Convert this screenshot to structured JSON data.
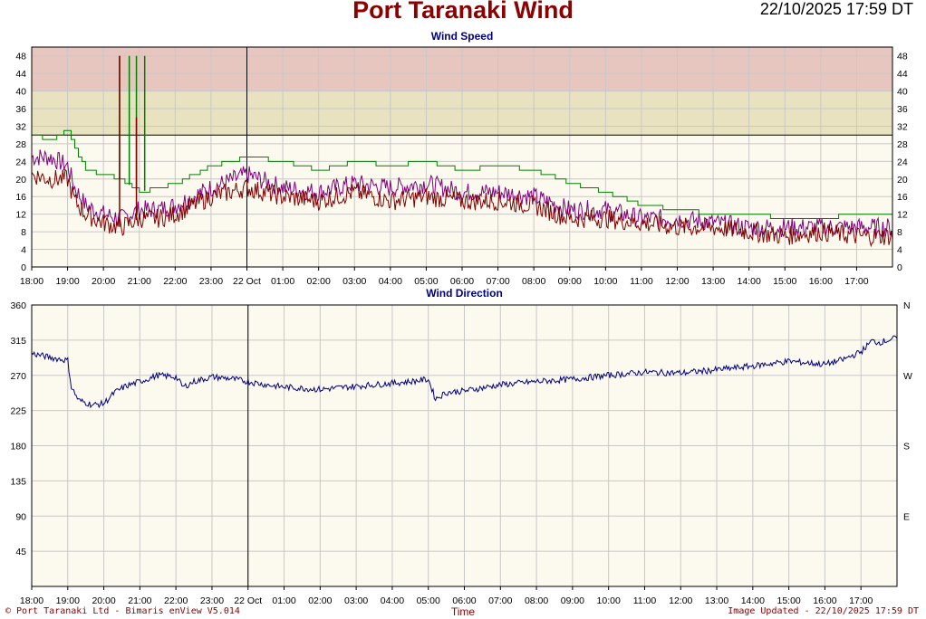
{
  "header": {
    "title": "Port Taranaki Wind",
    "timestamp": "22/10/2025 17:59 DT"
  },
  "footer": {
    "left": "© Port Taranaki Ltd - Bimaris enView V5.014",
    "right": "Image Updated - 22/10/2025 17:59 DT",
    "xlabel": "Time"
  },
  "colors": {
    "gust": "#800080",
    "mean": "#800000",
    "max": "#008000",
    "direction": "#000080",
    "band_high": "#e8c6c0",
    "band_mid": "#e8e2c0",
    "background": "#fcf9ee"
  },
  "x_ticks": [
    "18:00",
    "19:00",
    "20:00",
    "21:00",
    "22:00",
    "23:00",
    "22 Oct",
    "01:00",
    "02:00",
    "03:00",
    "04:00",
    "05:00",
    "06:00",
    "07:00",
    "08:00",
    "09:00",
    "10:00",
    "11:00",
    "12:00",
    "13:00",
    "14:00",
    "15:00",
    "16:00",
    "17:00"
  ],
  "chart_data": [
    {
      "type": "line",
      "title": "Wind Speed",
      "x_range": [
        "21/10/2025 18:00",
        "22/10/2025 18:00"
      ],
      "ylim": [
        0,
        50
      ],
      "yticks": [
        0,
        4,
        8,
        12,
        16,
        20,
        24,
        28,
        32,
        36,
        40,
        44,
        48
      ],
      "grid": true,
      "bands": [
        {
          "from": 30,
          "to": 40,
          "color": "#e8e2c0"
        },
        {
          "from": 40,
          "to": 50,
          "color": "#e8c6c0"
        }
      ],
      "series": [
        {
          "key": "max",
          "color": "#008000",
          "x": [
            0,
            0.5,
            1,
            1.2,
            1.5,
            2,
            2.5,
            3,
            3.5,
            4,
            5,
            6,
            7,
            8,
            9,
            10,
            11,
            12,
            13,
            14,
            15,
            16,
            17,
            18,
            19,
            20,
            21,
            22,
            23,
            24
          ],
          "y": [
            30,
            29,
            31,
            27,
            22,
            21,
            20,
            17,
            18,
            19,
            23,
            25,
            24,
            22,
            24,
            23,
            24,
            22,
            23,
            22,
            19,
            17,
            14,
            13,
            12,
            12,
            11,
            11,
            12,
            12
          ]
        },
        {
          "key": "gust",
          "color": "#800080",
          "x": [
            0,
            0.5,
            1,
            1.2,
            1.5,
            2,
            2.5,
            3,
            3.5,
            4,
            5,
            6,
            7,
            8,
            9,
            10,
            11,
            12,
            13,
            14,
            15,
            16,
            17,
            18,
            19,
            20,
            21,
            22,
            23,
            24
          ],
          "y": [
            25,
            25,
            23,
            18,
            14,
            12,
            11,
            13,
            13,
            14,
            18,
            21,
            18,
            17,
            19,
            18,
            19,
            17,
            17,
            16,
            13,
            13,
            11,
            11,
            10,
            9,
            9,
            9,
            9,
            9
          ]
        },
        {
          "key": "mean",
          "color": "#800000",
          "x": [
            0,
            0.5,
            1,
            1.2,
            1.5,
            2,
            2.5,
            3,
            3.5,
            4,
            5,
            6,
            7,
            8,
            9,
            10,
            11,
            12,
            13,
            14,
            15,
            16,
            17,
            18,
            19,
            20,
            21,
            22,
            23,
            24
          ],
          "y": [
            21,
            20,
            20,
            15,
            12,
            10,
            9,
            11,
            11,
            12,
            16,
            18,
            16,
            15,
            17,
            15,
            16,
            15,
            15,
            14,
            11,
            11,
            10,
            9,
            9,
            8,
            7,
            8,
            7,
            7
          ]
        }
      ],
      "spikes": [
        {
          "x": 2.45,
          "y": 48,
          "key": "max"
        },
        {
          "x": 2.72,
          "y": 48,
          "key": "max"
        },
        {
          "x": 2.92,
          "y": 48,
          "key": "max"
        },
        {
          "x": 3.15,
          "y": 48,
          "key": "max"
        },
        {
          "x": 2.45,
          "y": 48,
          "key": "mean"
        },
        {
          "x": 2.92,
          "y": 34,
          "key": "mean"
        }
      ]
    },
    {
      "type": "line",
      "title": "Wind Direction",
      "x_range": [
        "21/10/2025 18:00",
        "22/10/2025 18:00"
      ],
      "ylim": [
        0,
        360
      ],
      "yticks": [
        45,
        90,
        135,
        180,
        225,
        270,
        315,
        360
      ],
      "right_ticks": [
        {
          "value": 360,
          "label": "N"
        },
        {
          "value": 270,
          "label": "W"
        },
        {
          "value": 180,
          "label": "S"
        },
        {
          "value": 90,
          "label": "E"
        }
      ],
      "grid": true,
      "series": [
        {
          "key": "direction",
          "color": "#000080",
          "x": [
            0,
            0.5,
            1,
            1.1,
            1.3,
            1.7,
            2,
            2.3,
            2.6,
            3,
            3.5,
            4,
            4.2,
            4.5,
            5,
            5.5,
            6,
            6.5,
            7,
            8,
            9,
            10,
            10.5,
            11,
            11.2,
            11.5,
            12,
            13,
            14,
            15,
            16,
            17,
            18,
            19,
            20,
            21,
            22,
            22.5,
            23,
            23.3,
            23.5,
            24
          ],
          "y": [
            298,
            293,
            289,
            255,
            238,
            232,
            234,
            248,
            256,
            262,
            270,
            268,
            255,
            262,
            268,
            266,
            262,
            258,
            255,
            252,
            256,
            260,
            262,
            265,
            240,
            248,
            250,
            258,
            262,
            265,
            270,
            274,
            273,
            277,
            282,
            288,
            284,
            290,
            300,
            314,
            312,
            318
          ]
        }
      ]
    }
  ]
}
